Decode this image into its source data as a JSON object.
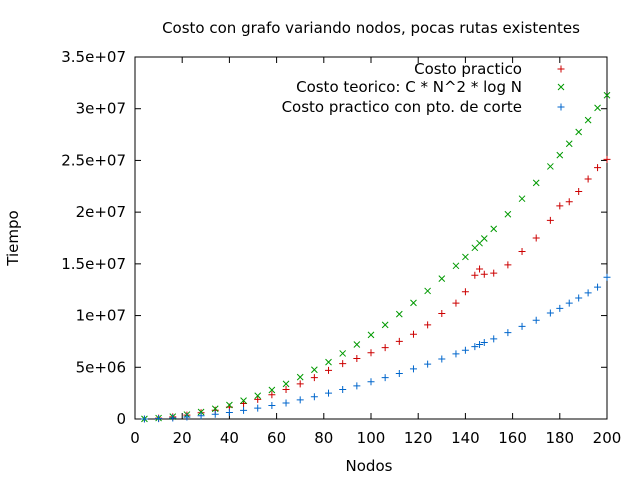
{
  "chart_data": {
    "type": "scatter",
    "title": "Costo con grafo variando nodos, pocas rutas existentes",
    "xlabel": "Nodos",
    "ylabel": "Tiempo",
    "xlim": [
      0,
      200
    ],
    "ylim": [
      0,
      35000000
    ],
    "xticks": [
      0,
      20,
      40,
      60,
      80,
      100,
      120,
      140,
      160,
      180,
      200
    ],
    "xtick_labels": [
      "0",
      "20",
      "40",
      "60",
      "80",
      "100",
      "120",
      "140",
      "160",
      "180",
      "200"
    ],
    "yticks": [
      0,
      5000000,
      10000000,
      15000000,
      20000000,
      25000000,
      30000000,
      35000000
    ],
    "ytick_labels": [
      "0",
      "5e+06",
      "1e+07",
      "1.5e+07",
      "2e+07",
      "2.5e+07",
      "3e+07",
      "3.5e+07"
    ],
    "grid": false,
    "legend_position": "top-right",
    "x": [
      4,
      10,
      16,
      22,
      28,
      34,
      40,
      46,
      52,
      58,
      64,
      70,
      76,
      82,
      88,
      94,
      100,
      106,
      112,
      118,
      124,
      130,
      136,
      140,
      144,
      146,
      148,
      152,
      158,
      164,
      170,
      176,
      180,
      184,
      188,
      192,
      196,
      200
    ],
    "series": [
      {
        "name": "Costo practico",
        "marker": "+",
        "color": "#cc0000",
        "values": [
          0,
          80000,
          200000,
          380000,
          600000,
          850000,
          1150000,
          1500000,
          1900000,
          2350000,
          2850000,
          3400000,
          4000000,
          4700000,
          5350000,
          5850000,
          6400000,
          6900000,
          7500000,
          8200000,
          9100000,
          10200000,
          11200000,
          12300000,
          13900000,
          14500000,
          14000000,
          14100000,
          14900000,
          16200000,
          17500000,
          19200000,
          20600000,
          21000000,
          22000000,
          23200000,
          24300000,
          25100000
        ]
      },
      {
        "name": "Costo teorico: C * N^2 * log N",
        "marker": "x",
        "color": "#009900",
        "values": [
          10000,
          90000,
          230000,
          430000,
          680000,
          990000,
          1350000,
          1780000,
          2250000,
          2800000,
          3400000,
          4050000,
          4760000,
          5500000,
          6340000,
          7200000,
          8130000,
          9100000,
          10140000,
          11230000,
          12380000,
          13570000,
          14810000,
          15670000,
          16550000,
          17000000,
          17450000,
          18380000,
          19800000,
          21300000,
          22830000,
          24420000,
          25510000,
          26610000,
          27750000,
          28900000,
          30080000,
          31300000
        ]
      },
      {
        "name": "Costo practico con pto. de corte",
        "marker": "+",
        "color": "#0066cc",
        "values": [
          0,
          40000,
          100000,
          190000,
          310000,
          460000,
          630000,
          830000,
          1050000,
          1300000,
          1550000,
          1850000,
          2150000,
          2500000,
          2850000,
          3200000,
          3600000,
          4000000,
          4400000,
          4850000,
          5300000,
          5800000,
          6300000,
          6650000,
          7000000,
          7200000,
          7400000,
          7750000,
          8350000,
          8950000,
          9550000,
          10250000,
          10700000,
          11200000,
          11700000,
          12200000,
          12750000,
          13700000
        ]
      }
    ]
  }
}
